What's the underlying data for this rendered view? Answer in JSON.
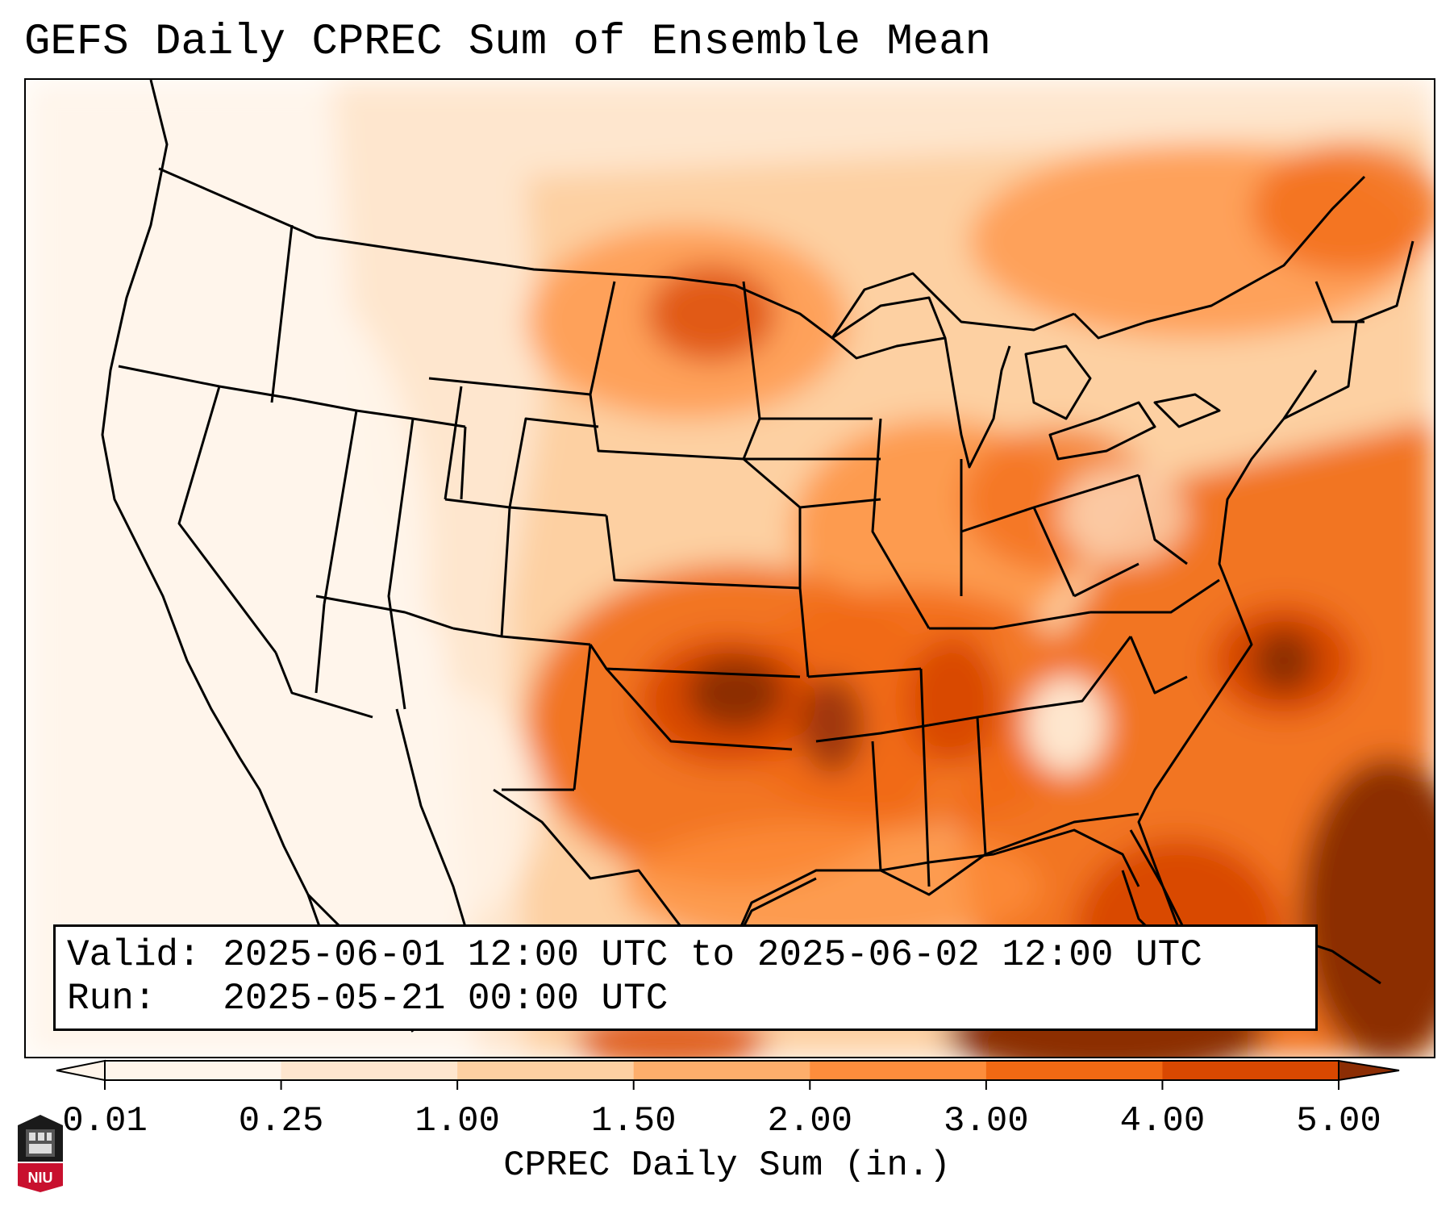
{
  "title": "GEFS Daily CPREC Sum of Ensemble Mean",
  "info": {
    "valid_label": "Valid:",
    "valid_value": "2025-06-01 12:00 UTC to 2025-06-02 12:00 UTC",
    "run_label": "Run:",
    "run_value": "2025-05-21 00:00 UTC"
  },
  "colorbar": {
    "title": "CPREC Daily Sum (in.)",
    "ticks": [
      "0.01",
      "0.25",
      "1.00",
      "1.50",
      "2.00",
      "3.00",
      "4.00",
      "5.00"
    ],
    "colors": [
      "#fff5eb",
      "#fee6ce",
      "#fdd0a2",
      "#fdae6b",
      "#fd8d3c",
      "#f16913",
      "#d94801",
      "#8c2d04"
    ]
  },
  "logo": {
    "text": "NIU"
  },
  "colors": {
    "background": "#ffffff",
    "lowest": "#fff5eb",
    "highest": "#8c2d04"
  }
}
